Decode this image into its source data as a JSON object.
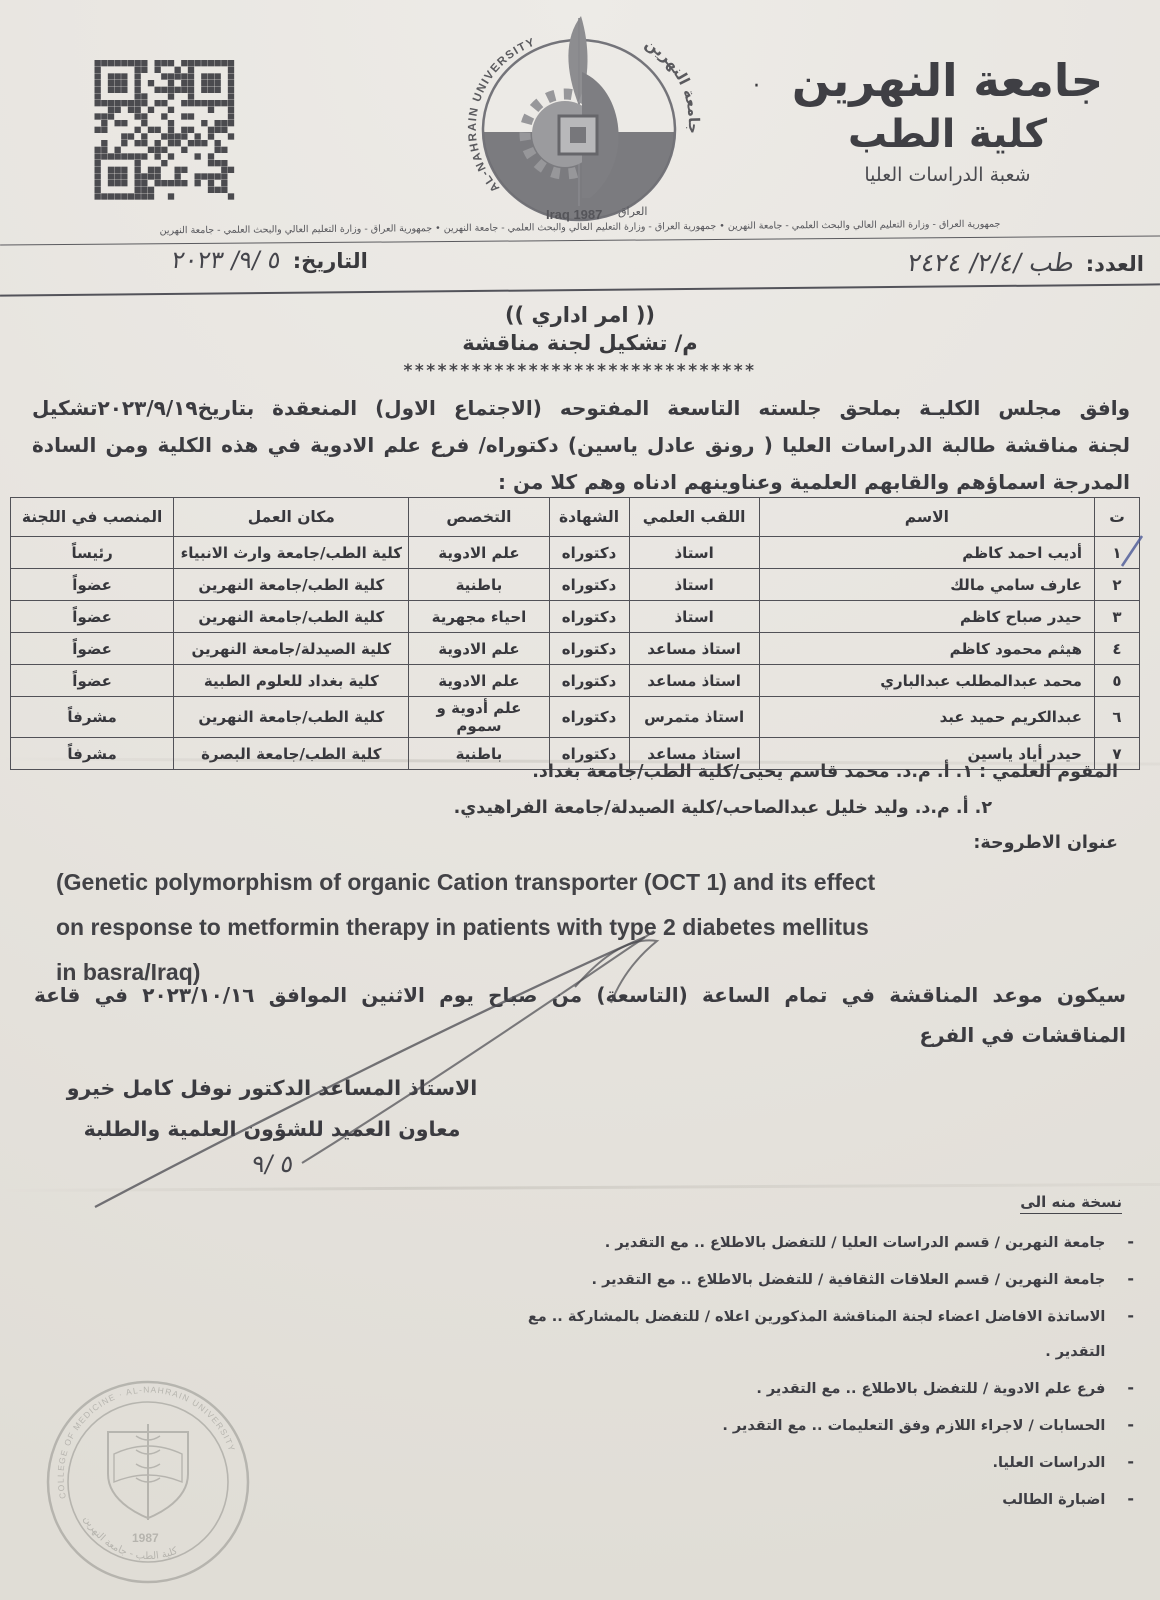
{
  "header": {
    "bullet": "·",
    "university_ar": "جامعة النهرين",
    "college_ar": "كلية الطب",
    "division_ar": "شعبة الدراسات العليا",
    "strip_text": "جمهورية العراق - وزارة التعليم العالي والبحث العلمي - جامعة النهرين  •  جمهورية العراق - وزارة التعليم العالي والبحث العلمي - جامعة النهرين  •  جمهورية العراق - وزارة التعليم العالي والبحث العلمي - جامعة النهرين",
    "number_label": "العدد:",
    "number_value": "طب /٢/٤/ ٢٤٢٤",
    "date_label": "التاريخ:",
    "date_value": "٥ /٩/ ٢٠٢٣"
  },
  "logo": {
    "arc_text_en": "AL-NAHRAIN UNIVERSITY",
    "arc_text_ar": "جامعة النهرين",
    "bottom_text_ar": "العراق",
    "bottom_text_en": "Iraq 1987"
  },
  "order": {
    "title": "(( امر اداري ))",
    "subject": "م/ تشكيل لجنة مناقشة",
    "stars": "*******************************",
    "body_lines": [
      "وافق مجلس الكليـة بملحق جلسته التاسعة المفتوحه (الاجتماع الاول) المنعقدة بتاريخ٢٠٢٣/٩/١٩تشكيل",
      "لجنة مناقشة طالبة الدراسات العليا ( رونق عادل ياسين) دكتوراه/ فرع علم الادوية في هذه الكلية ومن السادة",
      "المدرجة اسماؤهم والقابهم العلمية وعناوينهم ادناه وهم كلا من :"
    ]
  },
  "committee_table": {
    "headers": [
      "ت",
      "الاسم",
      "اللقب العلمي",
      "الشهادة",
      "التخصص",
      "مكان العمل",
      "المنصب في اللجنة"
    ],
    "rows": [
      {
        "no": "١",
        "name": "أديب احمد كاظم",
        "title": "استاذ",
        "degree": "دكتوراه",
        "spec": "علم الادوية",
        "work": "كلية الطب/جامعة وارث الانبياء",
        "role": "رئيساً"
      },
      {
        "no": "٢",
        "name": "عارف سامي مالك",
        "title": "استاذ",
        "degree": "دكتوراه",
        "spec": "باطنية",
        "work": "كلية الطب/جامعة النهرين",
        "role": "عضواً"
      },
      {
        "no": "٣",
        "name": "حيدر صباح كاظم",
        "title": "استاذ",
        "degree": "دكتوراه",
        "spec": "احياء مجهرية",
        "work": "كلية الطب/جامعة النهرين",
        "role": "عضواً"
      },
      {
        "no": "٤",
        "name": "هيثم محمود كاظم",
        "title": "استاذ مساعد",
        "degree": "دكتوراه",
        "spec": "علم الادوية",
        "work": "كلية الصيدلة/جامعة النهرين",
        "role": "عضواً"
      },
      {
        "no": "٥",
        "name": "محمد عبدالمطلب عبدالباري",
        "title": "استاذ مساعد",
        "degree": "دكتوراه",
        "spec": "علم الادوية",
        "work": "كلية بغداد للعلوم الطبية",
        "role": "عضواً"
      },
      {
        "no": "٦",
        "name": "عبدالكريم حميد عبد",
        "title": "استاذ متمرس",
        "degree": "دكتوراه",
        "spec": "علم أدوية و سموم",
        "work": "كلية الطب/جامعة النهرين",
        "role": "مشرفاً"
      },
      {
        "no": "٧",
        "name": "حيدر أياد ياسين",
        "title": "استاذ مساعد",
        "degree": "دكتوراه",
        "spec": "باطنية",
        "work": "كلية الطب/جامعة البصرة",
        "role": "مشرفاً"
      }
    ]
  },
  "evaluators": {
    "line1": "المقوم العلمي : ١.  أ. م.د. محمد قاسم يحيى/كلية الطب/جامعة بغداد.",
    "line2": "٢. أ. م.د. وليد خليل عبدالصاحب/كلية الصيدلة/جامعة الفراهيدي.",
    "thesis_label": "عنوان الاطروحة:"
  },
  "thesis": {
    "title_lines": [
      "(Genetic polymorphism of organic Cation transporter (OCT 1) and its effect",
      "on response to metformin therapy in patients with type 2 diabetes mellitus",
      "in basra/Iraq)"
    ]
  },
  "schedule": {
    "lines": [
      "سيكون موعد المناقشة في تمام الساعة (التاسعة) من صباح يوم الاثنين الموافق ٢٠٢٣/١٠/١٦ في قاعة",
      "المناقشات في الفرع"
    ]
  },
  "signature": {
    "name_line": "الاستاذ المساعد الدكتور نوفل كامل خيرو",
    "position_line": "معاون العميد للشؤون العلمية والطلبة",
    "hw_note": "٥ /٩"
  },
  "distribution": {
    "heading": "نسخة منه الى",
    "dash": "-",
    "items": [
      {
        "text": "جامعة النهرين / قسم الدراسات العليا / للتفضل بالاطلاع .. مع التقدير ."
      },
      {
        "text": "جامعة النهرين / قسم العلاقات الثقافية / للتفضل بالاطلاع .. مع التقدير ."
      },
      {
        "text": "الاساتذة الافاضل اعضاء لجنة المناقشة المذكورين اعلاه / للتفضل بالمشاركة .. مع التقدير ."
      },
      {
        "text": "فرع  علم الادوية / للتفضل بالاطلاع .. مع التقدير ."
      },
      {
        "text": "الحسابات / لاجراء اللازم وفق التعليمات .. مع التقدير ."
      },
      {
        "text": "الدراسات العليا."
      },
      {
        "text": "اضبارة الطالب"
      }
    ]
  },
  "seal": {
    "arc_en": "COLLEGE OF MEDICINE · AL-NAHRAIN UNIVERSITY",
    "arc_ar": "كلية الطب - جامعة النهرين",
    "year": "1987"
  }
}
